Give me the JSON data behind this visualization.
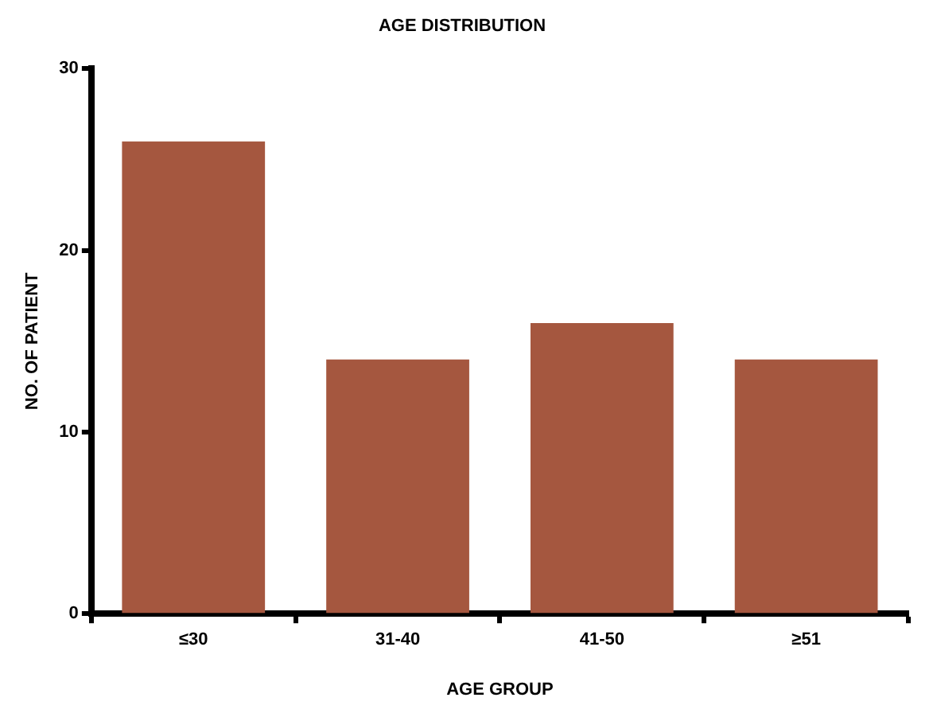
{
  "chart_data": {
    "type": "bar",
    "title": "AGE DISTRIBUTION",
    "xlabel": "AGE GROUP",
    "ylabel": "NO. OF PATIENT",
    "categories": [
      "≤30",
      "31-40",
      "41-50",
      "≥51"
    ],
    "values": [
      26,
      14,
      16,
      14
    ],
    "color": "#a5573f",
    "ylim": [
      0,
      30
    ],
    "yticks": [
      0,
      10,
      20,
      30
    ],
    "grid": false,
    "legend": false
  }
}
